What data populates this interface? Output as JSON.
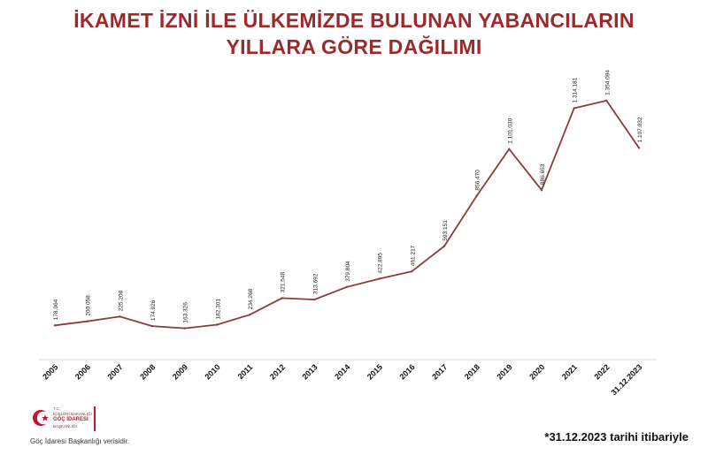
{
  "title": {
    "line1": "İKAMET İZNİ İLE ÜLKEMİZDE BULUNAN YABANCILARIN",
    "line2": "YILLARA GÖRE DAĞILIMI"
  },
  "chart_data": {
    "type": "line",
    "categories": [
      "2005",
      "2006",
      "2007",
      "2008",
      "2009",
      "2010",
      "2011",
      "2012",
      "2013",
      "2014",
      "2015",
      "2016",
      "2017",
      "2018",
      "2019",
      "2020",
      "2021",
      "2022",
      "31.12.2023"
    ],
    "values": [
      178964,
      200058,
      225208,
      174926,
      163326,
      182301,
      234268,
      321548,
      313692,
      379804,
      422895,
      461217,
      593151,
      856470,
      1101030,
      886653,
      1314181,
      1354094,
      1107032
    ],
    "value_labels": [
      "178.964",
      "200.058",
      "225.208",
      "174.926",
      "163.326",
      "182.301",
      "234.268",
      "321.548",
      "313.692",
      "379.804",
      "422.895",
      "461.217",
      "593.151",
      "856.470",
      "1.101.030",
      "886.653",
      "1.314.181",
      "1.354.094",
      "1.107.032"
    ],
    "ylim": [
      0,
      1520000
    ],
    "grid": false,
    "color": "#8a3b3c"
  },
  "logo": {
    "line1": "T.C.",
    "line2": "İÇİŞLERİ BAKANLIĞI",
    "line3": "GÖÇ İDARESİ",
    "line4": "BAŞKANLIĞI"
  },
  "footer": {
    "source": "Göç İdaresi Başkanlığı verisidir.",
    "note": "*31.12.2023 tarihi itibariyle"
  }
}
